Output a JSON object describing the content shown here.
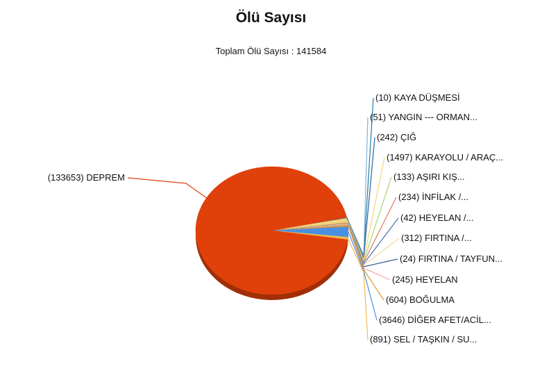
{
  "chart_data": {
    "type": "pie",
    "title": "Ölü Sayısı",
    "subtitle": "Toplam Ölü Sayısı : 141584",
    "legend": "none",
    "slices": [
      {
        "label": "(133653) DEPREM",
        "value": 133653,
        "color": "#E0400A"
      },
      {
        "label": "(10) KAYA DÜŞMESİ",
        "value": 10,
        "color": "#1B7FA8"
      },
      {
        "label": "(51) YANGIN --- ORMAN...",
        "value": 51,
        "color": "#7FB2D6"
      },
      {
        "label": "(242) ÇIĞ",
        "value": 242,
        "color": "#2B5E9C"
      },
      {
        "label": "(1497) KARAYOLU / ARAÇ...",
        "value": 1497,
        "color": "#F5D37A"
      },
      {
        "label": "(133) AŞIRI KIŞ...",
        "value": 133,
        "color": "#A9D66E"
      },
      {
        "label": "(234) İNFİLAK /...",
        "value": 234,
        "color": "#E07A5F"
      },
      {
        "label": "(42) HEYELAN /...",
        "value": 42,
        "color": "#4A6FB0"
      },
      {
        "label": "(312) FIRTINA /...",
        "value": 312,
        "color": "#F2D99A"
      },
      {
        "label": "(24) FIRTINA / TAYFUN...",
        "value": 24,
        "color": "#355C8C"
      },
      {
        "label": "(245) HEYELAN",
        "value": 245,
        "color": "#F4A6A0"
      },
      {
        "label": "(604) BOĞULMA",
        "value": 604,
        "color": "#D99A3A"
      },
      {
        "label": "(3646) DİĞER AFET/ACİL...",
        "value": 3646,
        "color": "#4A90E2"
      },
      {
        "label": "(891) SEL / TAŞKIN / SU...",
        "value": 891,
        "color": "#F2B84B"
      }
    ]
  }
}
